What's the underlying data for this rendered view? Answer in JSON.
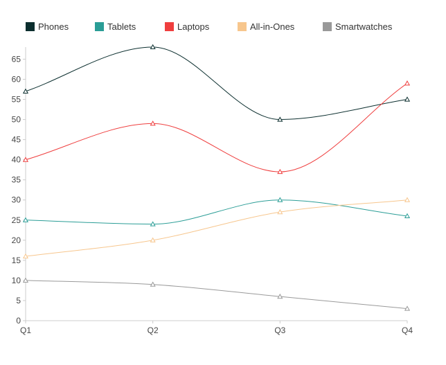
{
  "chart_data": {
    "type": "line",
    "categories": [
      "Q1",
      "Q2",
      "Q3",
      "Q4"
    ],
    "ylim": [
      0,
      68
    ],
    "yticks": [
      0,
      5,
      10,
      15,
      20,
      25,
      30,
      35,
      40,
      45,
      50,
      55,
      60,
      65
    ],
    "legend_position": "top",
    "grid": false,
    "smooth": true,
    "marker": "triangle",
    "series": [
      {
        "name": "Phones",
        "color": "#0b2e2e",
        "values": [
          57,
          68,
          50,
          55
        ]
      },
      {
        "name": "Tablets",
        "color": "#2a9d96",
        "values": [
          25,
          24,
          30,
          26
        ]
      },
      {
        "name": "Laptops",
        "color": "#ef3e3e",
        "values": [
          40,
          49,
          37,
          59
        ]
      },
      {
        "name": "All-in-Ones",
        "color": "#f7c68d",
        "values": [
          16,
          20,
          27,
          30
        ]
      },
      {
        "name": "Smartwatches",
        "color": "#999999",
        "values": [
          10,
          9,
          6,
          3
        ]
      }
    ]
  }
}
